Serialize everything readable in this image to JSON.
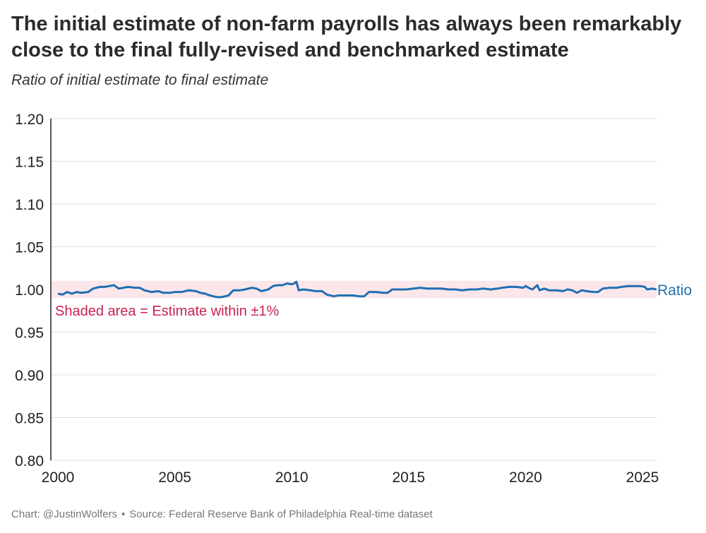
{
  "title": "The initial estimate of non-farm payrolls has always been remarkably close to the final fully-revised and benchmarked estimate",
  "subtitle": "Ratio of initial estimate to final estimate",
  "footer": {
    "credit": "Chart: @JustinWolfers",
    "separator": "•",
    "source": "Source: Federal Reserve Bank of Philadelphia Real-time dataset"
  },
  "colors": {
    "line": "#1f6fb2",
    "band": "#fbe6ea",
    "annotation": "#c8234f",
    "grid": "#dddddd",
    "axis": "#222222"
  },
  "chart_data": {
    "type": "line",
    "title": "The initial estimate of non-farm payrolls has always been remarkably close to the final fully-revised and benchmarked estimate",
    "subtitle": "Ratio of initial estimate to final estimate",
    "xlabel": "",
    "ylabel": "",
    "xlim": [
      2000,
      2025.6
    ],
    "ylim": [
      0.8,
      1.2
    ],
    "x_ticks": [
      "2000",
      "2005",
      "2010",
      "2015",
      "2020",
      "2025"
    ],
    "y_ticks": [
      "0.80",
      "0.85",
      "0.90",
      "0.95",
      "1.00",
      "1.05",
      "1.10",
      "1.15",
      "1.20"
    ],
    "grid": "horizontal",
    "band": {
      "from": 0.99,
      "to": 1.01,
      "label": "Shaded area = Estimate within ±1%"
    },
    "series": [
      {
        "name": "Ratio",
        "points": [
          [
            2000.0,
            0.995
          ],
          [
            2000.2,
            0.994
          ],
          [
            2000.4,
            0.997
          ],
          [
            2000.6,
            0.995
          ],
          [
            2000.8,
            0.997
          ],
          [
            2001.0,
            0.996
          ],
          [
            2001.3,
            0.997
          ],
          [
            2001.5,
            1.001
          ],
          [
            2001.8,
            1.003
          ],
          [
            2002.0,
            1.003
          ],
          [
            2002.2,
            1.004
          ],
          [
            2002.4,
            1.005
          ],
          [
            2002.6,
            1.001
          ],
          [
            2002.8,
            1.002
          ],
          [
            2003.0,
            1.003
          ],
          [
            2003.3,
            1.002
          ],
          [
            2003.5,
            1.002
          ],
          [
            2003.7,
            0.999
          ],
          [
            2004.0,
            0.997
          ],
          [
            2004.3,
            0.998
          ],
          [
            2004.5,
            0.996
          ],
          [
            2004.8,
            0.996
          ],
          [
            2005.0,
            0.997
          ],
          [
            2005.3,
            0.997
          ],
          [
            2005.6,
            0.999
          ],
          [
            2005.9,
            0.998
          ],
          [
            2006.1,
            0.996
          ],
          [
            2006.3,
            0.995
          ],
          [
            2006.5,
            0.993
          ],
          [
            2006.8,
            0.991
          ],
          [
            2007.0,
            0.991
          ],
          [
            2007.3,
            0.993
          ],
          [
            2007.5,
            0.999
          ],
          [
            2007.8,
            0.999
          ],
          [
            2008.0,
            1.0
          ],
          [
            2008.3,
            1.002
          ],
          [
            2008.5,
            1.001
          ],
          [
            2008.7,
            0.998
          ],
          [
            2009.0,
            1.0
          ],
          [
            2009.2,
            1.004
          ],
          [
            2009.4,
            1.005
          ],
          [
            2009.6,
            1.005
          ],
          [
            2009.8,
            1.007
          ],
          [
            2010.0,
            1.006
          ],
          [
            2010.1,
            1.007
          ],
          [
            2010.2,
            1.009
          ],
          [
            2010.3,
            0.999
          ],
          [
            2010.5,
            1.0
          ],
          [
            2010.8,
            0.999
          ],
          [
            2011.0,
            0.998
          ],
          [
            2011.3,
            0.998
          ],
          [
            2011.5,
            0.994
          ],
          [
            2011.8,
            0.992
          ],
          [
            2012.0,
            0.993
          ],
          [
            2012.3,
            0.993
          ],
          [
            2012.6,
            0.993
          ],
          [
            2012.9,
            0.992
          ],
          [
            2013.1,
            0.992
          ],
          [
            2013.3,
            0.997
          ],
          [
            2013.6,
            0.997
          ],
          [
            2013.9,
            0.996
          ],
          [
            2014.1,
            0.996
          ],
          [
            2014.3,
            1.0
          ],
          [
            2014.6,
            1.0
          ],
          [
            2014.9,
            1.0
          ],
          [
            2015.2,
            1.001
          ],
          [
            2015.5,
            1.002
          ],
          [
            2015.8,
            1.001
          ],
          [
            2016.1,
            1.001
          ],
          [
            2016.4,
            1.001
          ],
          [
            2016.7,
            1.0
          ],
          [
            2017.0,
            1.0
          ],
          [
            2017.3,
            0.999
          ],
          [
            2017.6,
            1.0
          ],
          [
            2017.9,
            1.0
          ],
          [
            2018.2,
            1.001
          ],
          [
            2018.5,
            1.0
          ],
          [
            2018.8,
            1.001
          ],
          [
            2019.0,
            1.002
          ],
          [
            2019.3,
            1.003
          ],
          [
            2019.6,
            1.003
          ],
          [
            2019.9,
            1.002
          ],
          [
            2020.0,
            1.004
          ],
          [
            2020.2,
            1.001
          ],
          [
            2020.3,
            1.0
          ],
          [
            2020.5,
            1.005
          ],
          [
            2020.6,
            0.999
          ],
          [
            2020.8,
            1.001
          ],
          [
            2021.0,
            0.999
          ],
          [
            2021.3,
            0.999
          ],
          [
            2021.6,
            0.998
          ],
          [
            2021.8,
            1.0
          ],
          [
            2022.0,
            0.999
          ],
          [
            2022.2,
            0.996
          ],
          [
            2022.4,
            0.999
          ],
          [
            2022.6,
            0.998
          ],
          [
            2022.9,
            0.997
          ],
          [
            2023.1,
            0.997
          ],
          [
            2023.3,
            1.001
          ],
          [
            2023.6,
            1.002
          ],
          [
            2023.9,
            1.002
          ],
          [
            2024.1,
            1.003
          ],
          [
            2024.4,
            1.004
          ],
          [
            2024.7,
            1.004
          ],
          [
            2024.9,
            1.004
          ],
          [
            2025.1,
            1.003
          ],
          [
            2025.2,
            1.0
          ],
          [
            2025.4,
            1.001
          ],
          [
            2025.6,
            1.0
          ]
        ]
      }
    ]
  }
}
